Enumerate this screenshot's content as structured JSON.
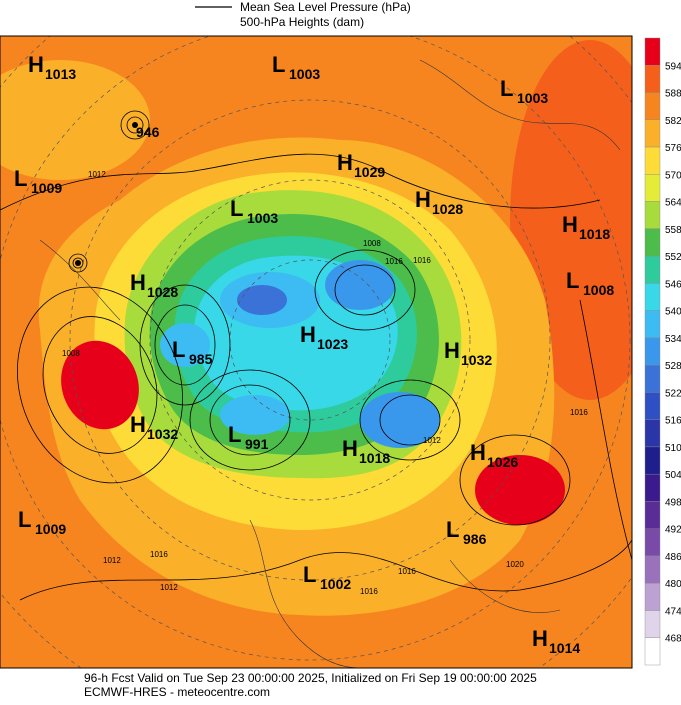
{
  "legend": {
    "line_label": "Mean Sea Level Pressure (hPa)",
    "fill_label": "500-hPa Heights (dam)"
  },
  "colorbar": {
    "levels": [
      594,
      588,
      582,
      576,
      570,
      564,
      558,
      552,
      546,
      540,
      534,
      528,
      522,
      516,
      510,
      504,
      498,
      492,
      486,
      480,
      474,
      468
    ],
    "colors": [
      "#e6001a",
      "#f4601c",
      "#f7851f",
      "#fbb02a",
      "#fddc38",
      "#e4ec38",
      "#a8dc3c",
      "#4cbc4a",
      "#2ecc9c",
      "#38d8e8",
      "#3cbcf2",
      "#3a98ec",
      "#3a72d8",
      "#2f50c4",
      "#2a36a8",
      "#1e1e8c",
      "#3a1a8c",
      "#5a2c96",
      "#7a4aa8",
      "#9a72bc",
      "#bca2d2",
      "#e0d4ea",
      "#ffffff"
    ]
  },
  "pressure_centers": [
    {
      "letter": "H",
      "value": "1013"
    },
    {
      "letter": "L",
      "value": "1003"
    },
    {
      "letter": "L",
      "value": "1003"
    },
    {
      "value": "946"
    },
    {
      "letter": "L",
      "value": "1009"
    },
    {
      "letter": "H",
      "value": "1029"
    },
    {
      "letter": "L",
      "value": "1003"
    },
    {
      "letter": "H",
      "value": "1028"
    },
    {
      "letter": "H",
      "value": "1018"
    },
    {
      "letter": "H",
      "value": "1028"
    },
    {
      "letter": "L",
      "value": "1008"
    },
    {
      "letter": "L",
      "value": "985"
    },
    {
      "letter": "H",
      "value": "1023"
    },
    {
      "letter": "H",
      "value": "1032"
    },
    {
      "letter": "H",
      "value": "1032"
    },
    {
      "letter": "L",
      "value": "991"
    },
    {
      "letter": "H",
      "value": "1018"
    },
    {
      "letter": "H",
      "value": "1026"
    },
    {
      "letter": "L",
      "value": "1009"
    },
    {
      "letter": "L",
      "value": "986"
    },
    {
      "letter": "L",
      "value": "1002"
    },
    {
      "letter": "H",
      "value": "1014"
    }
  ],
  "contour_labels": [
    "1012",
    "1008",
    "1016",
    "1008",
    "1012",
    "1016",
    "1016",
    "1012",
    "1020",
    "1016",
    "1016",
    "1012",
    "1016"
  ],
  "footer": {
    "line1": "96-h Fcst Valid on Tue Sep 23 00:00:00 2025, Initialized on Fri Sep 19 00:00:00 2025",
    "line2": "ECMWF-HRES  - meteocentre.com"
  }
}
